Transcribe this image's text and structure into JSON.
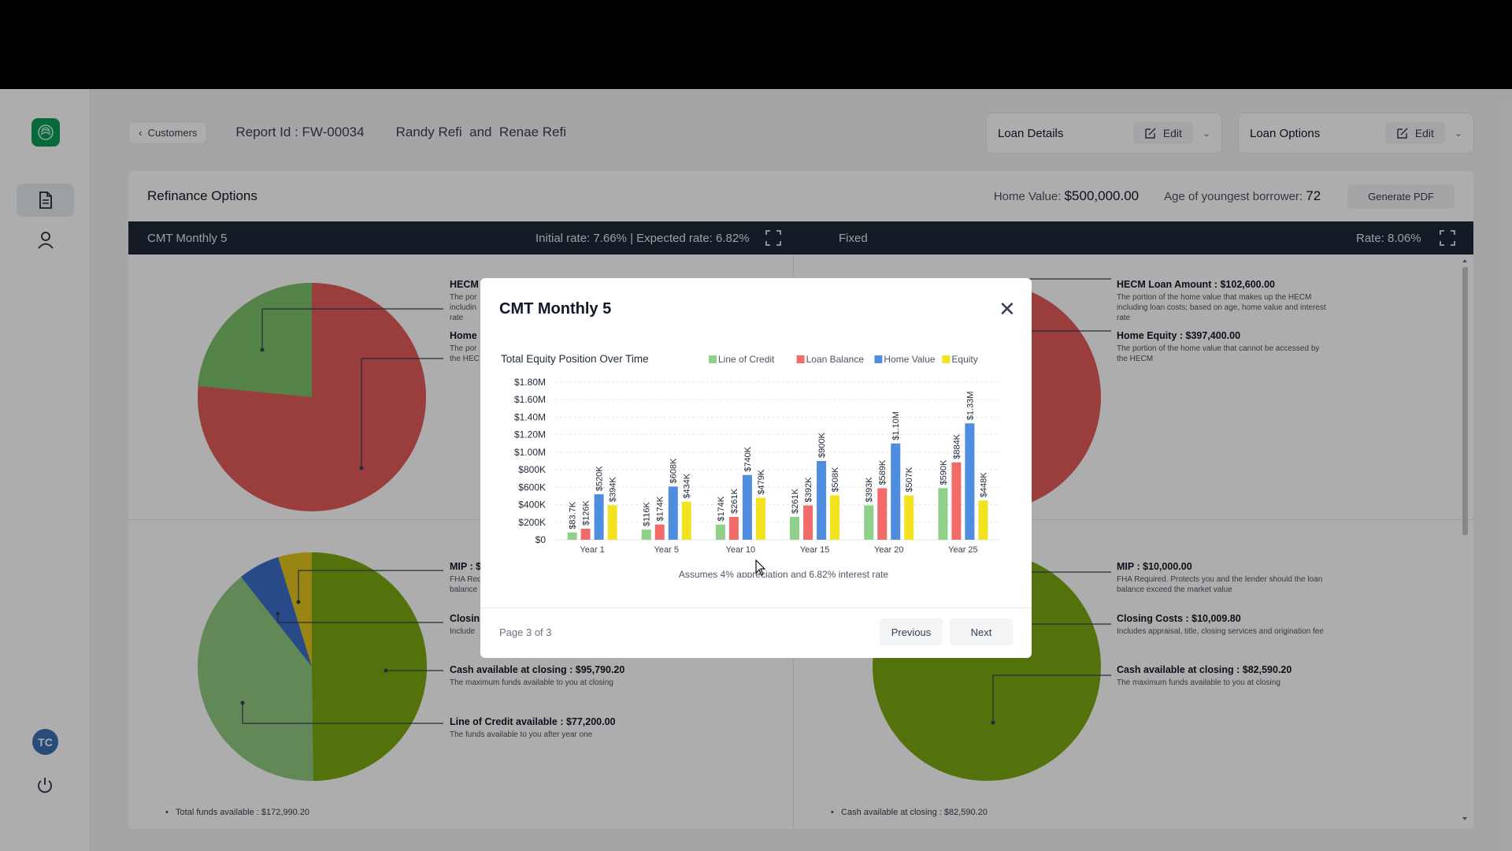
{
  "breadcrumb": {
    "label": "Customers"
  },
  "report": {
    "id_label": "Report Id : FW-00034",
    "borrowers": "Randy Refi  and  Renae Refi"
  },
  "loan_details": {
    "label": "Loan Details",
    "edit": "Edit"
  },
  "loan_options": {
    "label": "Loan Options",
    "edit": "Edit"
  },
  "card": {
    "title": "Refinance Options",
    "home_value_label": "Home Value:",
    "home_value": "$500,000.00",
    "age_label": "Age of youngest borrower:",
    "age": "72",
    "generate_pdf": "Generate PDF"
  },
  "bar": {
    "product": "CMT Monthly 5",
    "rates": "Initial rate: 7.66% | Expected rate: 6.82%",
    "fixed": "Fixed",
    "fixed_rate": "Rate: 8.06%"
  },
  "left_panel": {
    "top_labels": [
      {
        "title": "HECM",
        "desc": "The por\nincludin\nrate"
      },
      {
        "title": "Home",
        "desc": "The por\nthe HEC"
      }
    ],
    "bottom_labels": [
      {
        "title": "MIP : $",
        "desc": "FHA Req\nbalance"
      },
      {
        "title": "Closin",
        "desc": "Include"
      },
      {
        "title": "Cash available at closing : $95,790.20",
        "desc": "The maximum funds available to you at closing"
      },
      {
        "title": "Line of Credit available : $77,200.00",
        "desc": "The funds available to you after year one"
      }
    ],
    "total": "Total funds available  : $172,990.20"
  },
  "right_panel": {
    "top_labels": [
      {
        "title": "HECM Loan Amount : $102,600.00",
        "desc": "The portion of the home value that makes up the HECM\nincluding loan costs; based on age, home value and interest\nrate"
      },
      {
        "title": "Home Equity : $397,400.00",
        "desc": "The portion of the home value that cannot be accessed by\nthe HECM"
      }
    ],
    "bottom_labels": [
      {
        "title": "MIP : $10,000.00",
        "desc": "FHA Required. Protects you and the lender should the loan\nbalance exceed the market value"
      },
      {
        "title": "Closing Costs : $10,009.80",
        "desc": "Includes appraisal, title, closing services and origination fee"
      },
      {
        "title": "Cash available at closing : $82,590.20",
        "desc": "The maximum funds available to you at closing"
      }
    ],
    "total": "Cash available at closing  : $82,590.20"
  },
  "sidebar": {
    "avatar": "TC"
  },
  "modal": {
    "title": "CMT Monthly 5",
    "page": "Page 3 of 3",
    "previous": "Previous",
    "next": "Next"
  },
  "chart_data": {
    "type": "bar",
    "title": "Total Equity Position Over Time",
    "subtitle": "Assumes 4% appreciation and 6.82% interest rate",
    "categories": [
      "Year 1",
      "Year 5",
      "Year 10",
      "Year 15",
      "Year 20",
      "Year 25"
    ],
    "ylim": [
      0,
      1800000
    ],
    "yticks": [
      "$0",
      "$200K",
      "$400K",
      "$600K",
      "$800K",
      "$1.00M",
      "$1.20M",
      "$1.40M",
      "$1.60M",
      "$1.80M"
    ],
    "legend_position": "top-right",
    "series": [
      {
        "name": "Line of Credit",
        "color": "#8fd18a",
        "values": [
          83700,
          116000,
          174000,
          261000,
          393000,
          590000
        ],
        "labels": [
          "$83.7K",
          "$116K",
          "$174K",
          "$261K",
          "$393K",
          "$590K"
        ]
      },
      {
        "name": "Loan Balance",
        "color": "#f26b6b",
        "values": [
          126000,
          174000,
          261000,
          392000,
          589000,
          884000
        ],
        "labels": [
          "$126K",
          "$174K",
          "$261K",
          "$392K",
          "$589K",
          "$884K"
        ]
      },
      {
        "name": "Home Value",
        "color": "#4f8de0",
        "values": [
          520000,
          608000,
          740000,
          900000,
          1100000,
          1330000
        ],
        "labels": [
          "$520K",
          "$608K",
          "$740K",
          "$900K",
          "$1.10M",
          "$1.33M"
        ]
      },
      {
        "name": "Equity",
        "color": "#f2e21f",
        "values": [
          394000,
          434000,
          479000,
          508000,
          507000,
          448000
        ],
        "labels": [
          "$394K",
          "$434K",
          "$479K",
          "$508K",
          "$507K",
          "$448K"
        ]
      }
    ]
  }
}
